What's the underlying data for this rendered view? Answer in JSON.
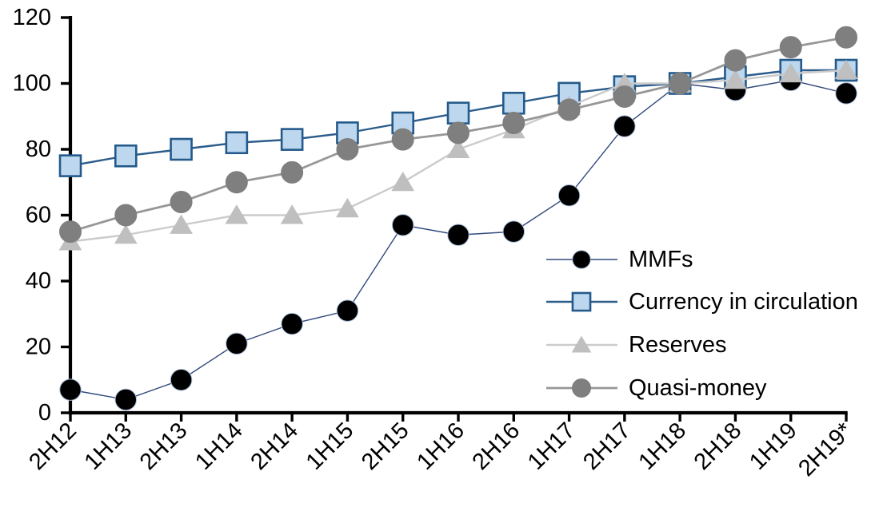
{
  "chart_data": {
    "type": "line",
    "title": "",
    "xlabel": "",
    "ylabel": "",
    "grid": false,
    "background_color": "#ffffff",
    "axis_color": "#000000",
    "ylim": [
      0,
      120
    ],
    "ytick_interval": 20,
    "ytick_labels": [
      "0",
      "20",
      "40",
      "60",
      "80",
      "100",
      "120"
    ],
    "categories": [
      "2H12",
      "1H13",
      "2H13",
      "1H14",
      "2H14",
      "1H15",
      "2H15",
      "1H16",
      "2H16",
      "1H17",
      "2H17",
      "1H18",
      "2H18",
      "1H19",
      "2H19*"
    ],
    "legend_position": "center-right",
    "series": [
      {
        "name": "MMFs",
        "slug": "mmfs",
        "marker": "circle",
        "marker_fill": "#000000",
        "marker_stroke": "#a9bdd9",
        "marker_stroke_width": 1,
        "marker_size": 26.5,
        "line_color": "#30497c",
        "line_width": 1.4,
        "values": [
          7,
          4,
          10,
          21,
          27,
          31,
          57,
          54,
          55,
          66,
          87,
          100,
          98,
          101,
          97
        ]
      },
      {
        "name": "Currency in circulation",
        "slug": "currency-in-circulation",
        "marker": "square",
        "marker_fill": "#bdd7ee",
        "marker_stroke": "#235a8b",
        "marker_stroke_width": 2.6,
        "marker_size": 26,
        "line_color": "#2b5c8a",
        "line_width": 2.4,
        "values": [
          75,
          78,
          80,
          82,
          83,
          85,
          88,
          91,
          94,
          97,
          99,
          100,
          102,
          104,
          104
        ]
      },
      {
        "name": "Reserves",
        "slug": "reserves",
        "marker": "triangle",
        "marker_fill": "#bfbfbf",
        "marker_stroke": "#bfbfbf",
        "marker_stroke_width": 1,
        "marker_size": 27,
        "line_color": "#cbcbcb",
        "line_width": 2.4,
        "values": [
          52,
          54,
          57,
          60,
          60,
          62,
          70,
          80,
          86,
          93,
          100,
          100,
          101,
          103,
          104
        ]
      },
      {
        "name": "Quasi-money",
        "slug": "quasi-money",
        "marker": "circle",
        "marker_fill": "#7f7f7f",
        "marker_stroke": "#7f7f7f",
        "marker_stroke_width": 1,
        "marker_size": 27,
        "line_color": "#979797",
        "line_width": 2.8,
        "values": [
          55,
          60,
          64,
          70,
          73,
          80,
          83,
          85,
          88,
          92,
          96,
          100,
          107,
          111,
          114
        ]
      }
    ]
  }
}
